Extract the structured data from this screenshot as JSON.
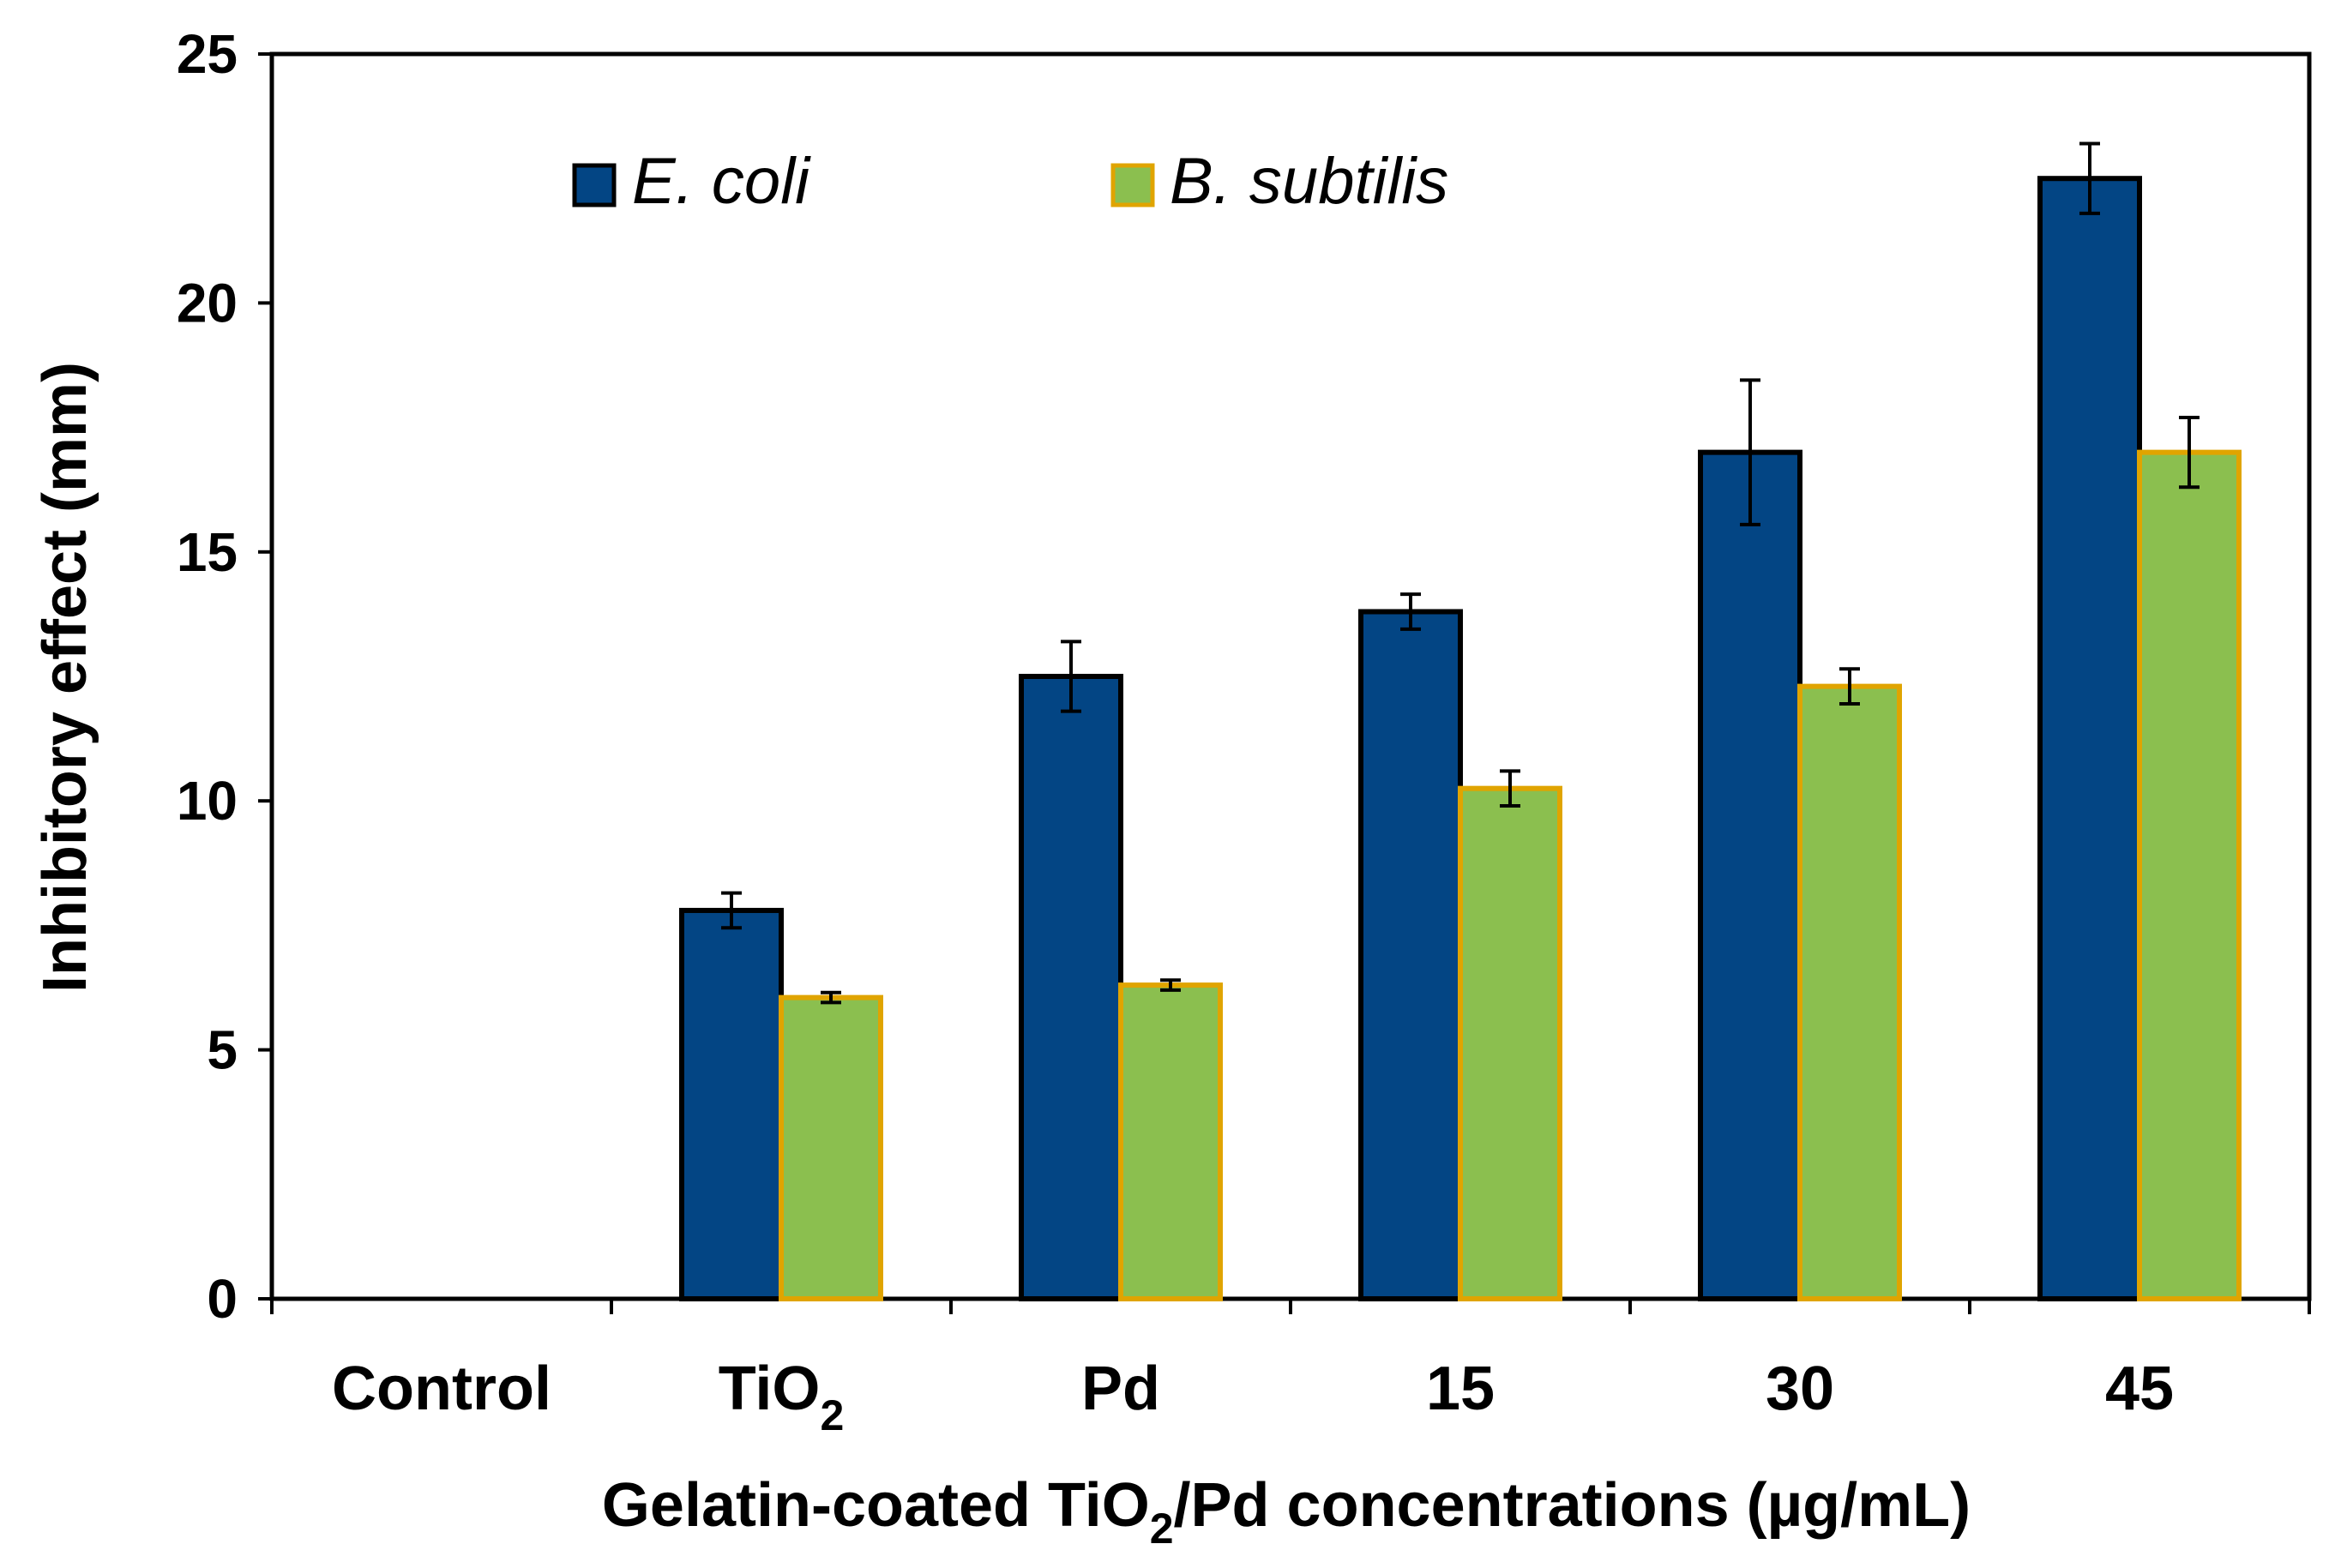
{
  "chart_data": {
    "type": "bar",
    "title": "",
    "xlabel": "Gelatin-coated TiO2/Pd concentrations (µg/mL)",
    "xlabel_parts": {
      "main": "Gelatin-coated TiO",
      "sub": "2",
      "rest": "/Pd concentrations (µg/mL)"
    },
    "ylabel": "Inhibitory effect (mm)",
    "ylim": [
      0,
      25
    ],
    "yticks": [
      0,
      5,
      10,
      15,
      20,
      25
    ],
    "categories": [
      {
        "label": "Control",
        "sub": ""
      },
      {
        "label": "TiO",
        "sub": "2"
      },
      {
        "label": "Pd",
        "sub": ""
      },
      {
        "label": "15",
        "sub": ""
      },
      {
        "label": "30",
        "sub": ""
      },
      {
        "label": "45",
        "sub": ""
      }
    ],
    "series": [
      {
        "name": "E. coli",
        "fill": "#034584",
        "stroke": "#000000",
        "values": [
          0,
          7.8,
          12.5,
          13.8,
          17.0,
          22.5
        ],
        "errors": [
          0,
          0.35,
          0.7,
          0.35,
          1.45,
          0.7
        ]
      },
      {
        "name": "B. subtilis",
        "fill": "#8BBF4F",
        "stroke": "#E0A400",
        "values": [
          0,
          6.05,
          6.3,
          10.25,
          12.3,
          17.0
        ],
        "errors": [
          0,
          0.1,
          0.1,
          0.35,
          0.35,
          0.7
        ]
      }
    ],
    "legend": "top-left",
    "grid": false
  }
}
